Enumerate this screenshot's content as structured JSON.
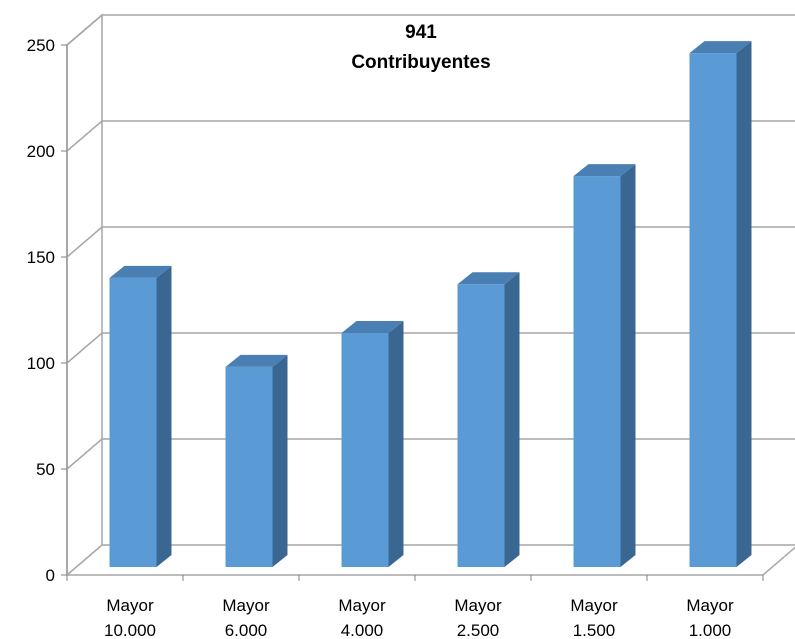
{
  "chart_data": {
    "type": "bar",
    "title": "941",
    "subtitle": "Contribuyentes",
    "categories": [
      [
        "Mayor",
        "10.000"
      ],
      [
        "Mayor",
        "6.000"
      ],
      [
        "Mayor",
        "4.000"
      ],
      [
        "Mayor",
        "2.500"
      ],
      [
        "Mayor",
        "1.500"
      ],
      [
        "Mayor",
        "1.000"
      ]
    ],
    "values": [
      143,
      101,
      117,
      140,
      191,
      249
    ],
    "ylim": [
      0,
      250
    ],
    "yticks": [
      0,
      50,
      100,
      150,
      200,
      250
    ],
    "grid": true,
    "legend": "none",
    "colors": {
      "front": "#5b9bd5",
      "side": "#3a6792",
      "top": "#4a7fb3",
      "grid": "#a6a6a6"
    }
  }
}
